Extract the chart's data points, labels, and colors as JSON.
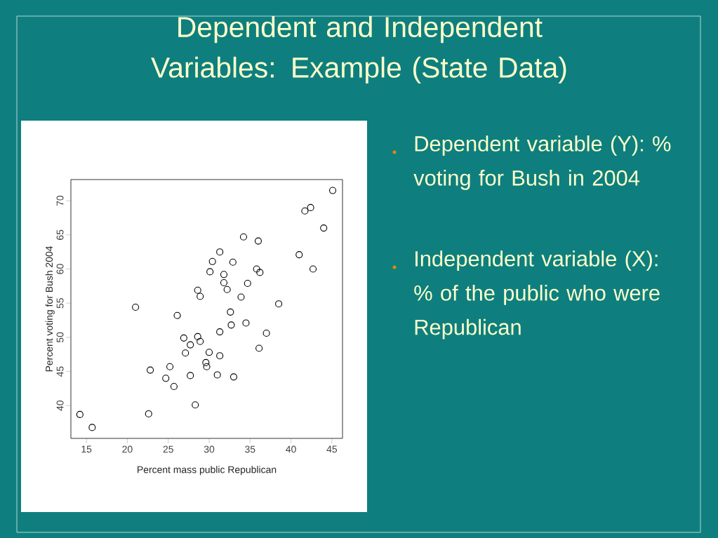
{
  "chart_data": {
    "type": "scatter",
    "title": "Dependent and Independent Variables: Example (State Data)",
    "xlabel": "Percent mass public Republican",
    "ylabel": "Percent voting for Bush 2004",
    "annotations": [
      "Dependent variable (Y): % voting for Bush in 2004",
      "Independent variable (X): % of the public who were Republican"
    ],
    "x": [
      14.2,
      15.7,
      21.0,
      22.8,
      22.6,
      25.2,
      24.7,
      25.7,
      26.1,
      26.9,
      27.1,
      27.7,
      27.7,
      28.6,
      28.6,
      28.9,
      28.9,
      28.3,
      29.6,
      29.7,
      30.0,
      30.1,
      30.4,
      31.3,
      31.8,
      31.8,
      32.2,
      31.3,
      31.3,
      31.0,
      32.9,
      33.0,
      32.6,
      32.7,
      34.2,
      33.9,
      34.7,
      34.5,
      36.0,
      35.8,
      36.2,
      36.1,
      37.0,
      38.5,
      41.0,
      41.7,
      42.4,
      42.7,
      44.0,
      45.1
    ],
    "values": [
      38.7,
      36.8,
      54.4,
      45.2,
      38.8,
      45.7,
      44.0,
      42.8,
      53.2,
      49.9,
      47.7,
      48.9,
      44.4,
      50.1,
      56.9,
      56.0,
      49.4,
      40.1,
      46.3,
      45.7,
      47.8,
      59.6,
      61.1,
      62.5,
      59.2,
      58.0,
      57.0,
      50.8,
      47.3,
      44.5,
      61.0,
      44.2,
      53.7,
      51.8,
      64.7,
      55.9,
      57.9,
      52.1,
      64.1,
      60.0,
      59.5,
      48.4,
      50.6,
      54.9,
      62.1,
      68.5,
      69.0,
      60.0,
      66.0,
      71.5
    ],
    "color": "#000000",
    "marker": "circle",
    "xlim": [
      13.1,
      46.3
    ],
    "ylim": [
      35.2,
      73.1
    ],
    "xticks": [
      15,
      20,
      25,
      30,
      35,
      40,
      45
    ],
    "yticks": [
      40,
      45,
      50,
      55,
      60,
      65,
      70
    ]
  }
}
